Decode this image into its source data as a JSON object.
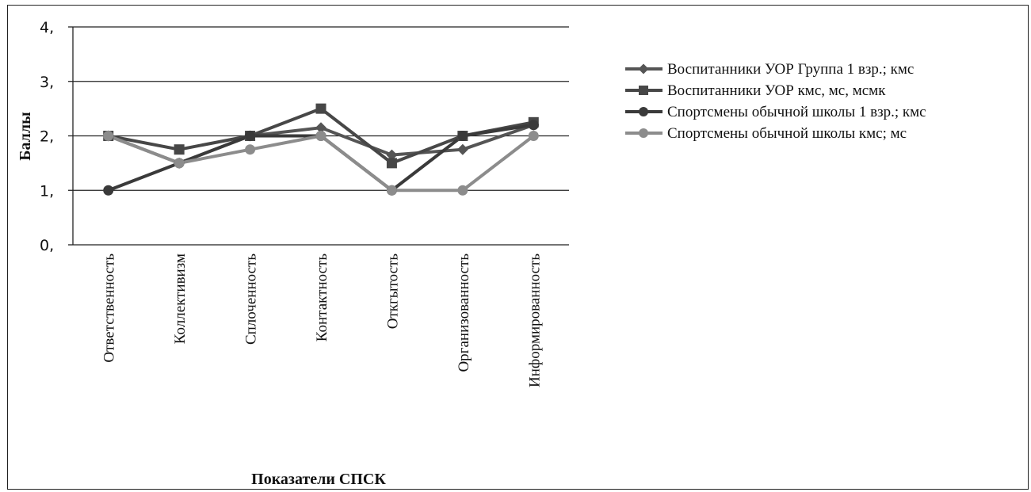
{
  "chart_data": {
    "type": "line",
    "title": "",
    "xlabel": "Показатели СПСК",
    "ylabel": "Баллы",
    "ylim": [
      0,
      4
    ],
    "yticks": [
      0,
      1,
      2,
      3,
      4
    ],
    "ytick_labels": [
      "0,",
      "1,",
      "2,",
      "3,",
      "4,"
    ],
    "grid": true,
    "legend_position": "right",
    "categories": [
      "Ответственность",
      "Коллективизм",
      "Сплоченность",
      "Контактность",
      "Откгытость",
      "Организованность",
      "Информированность"
    ],
    "series": [
      {
        "name": "Воспитанники УОР Группа 1 взр.; кмс",
        "marker": "diamond",
        "color": "#555555",
        "values": [
          2.0,
          1.5,
          2.0,
          2.15,
          1.65,
          1.75,
          2.2
        ]
      },
      {
        "name": "Воспитанники УОР кмс, мс, мсмк",
        "marker": "square",
        "color": "#474747",
        "values": [
          2.0,
          1.75,
          2.0,
          2.5,
          1.5,
          2.0,
          2.25
        ]
      },
      {
        "name": "Спортсмены обычной школы 1 взр.; кмс",
        "marker": "circle",
        "color": "#3a3a3a",
        "values": [
          1.0,
          1.5,
          2.0,
          2.0,
          1.0,
          2.0,
          2.2
        ]
      },
      {
        "name": "Спортсмены обычной школы кмс; мс",
        "marker": "circle",
        "color": "#8c8c8c",
        "values": [
          2.0,
          1.5,
          1.75,
          2.0,
          1.0,
          1.0,
          2.0
        ]
      }
    ]
  }
}
